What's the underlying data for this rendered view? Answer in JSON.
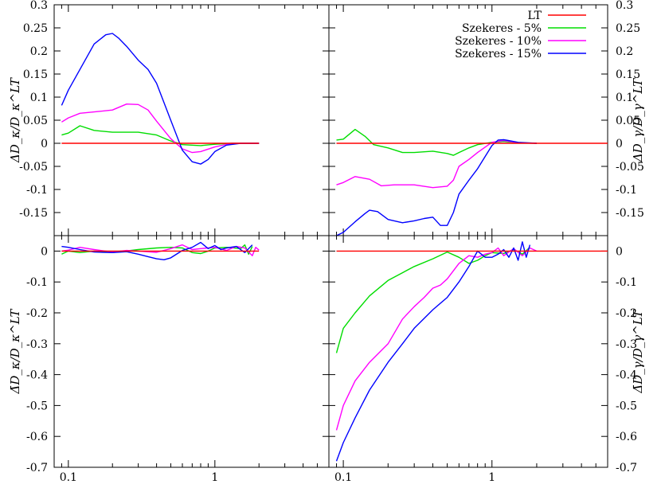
{
  "chart_data": {
    "type": "line",
    "xscale": "log",
    "x_tick_labels": [
      "0.1",
      "1"
    ],
    "x_tick_values": [
      0.1,
      1
    ],
    "xlim": [
      0.08,
      6
    ],
    "colors": {
      "LT": "#ff0000",
      "Szekeres - 5%": "#00dd00",
      "Szekeres - 10%": "#ff00ff",
      "Szekeres - 15%": "#0000ff"
    },
    "legend": {
      "placement": "top-right of upper-right panel",
      "entries": [
        "LT",
        "Szekeres - 5%",
        "Szekeres - 10%",
        "Szekeres - 15%"
      ]
    },
    "panels": [
      {
        "id": "top-left",
        "ylabel": "ΔD_κ/D_κ^LT",
        "ylim": [
          -0.2,
          0.3
        ],
        "yticks": [
          -0.15,
          -0.1,
          -0.05,
          0,
          0.05,
          0.1,
          0.15,
          0.2,
          0.25,
          0.3
        ],
        "ytick_labels": [
          "-0.15",
          "-0.1",
          "-0.05",
          "0",
          "0.05",
          "0.1",
          "0.15",
          "0.2",
          "0.25",
          "0.3"
        ],
        "ytick_side": "left",
        "series": [
          {
            "name": "LT",
            "x": [
              0.09,
              2.0
            ],
            "y": [
              0,
              0
            ]
          },
          {
            "name": "Szekeres - 5%",
            "x": [
              0.09,
              0.1,
              0.12,
              0.15,
              0.2,
              0.3,
              0.4,
              0.5,
              0.6,
              0.8,
              1.0,
              1.3,
              2.0
            ],
            "y": [
              0.018,
              0.022,
              0.038,
              0.028,
              0.024,
              0.024,
              0.018,
              0.005,
              -0.003,
              -0.005,
              -0.002,
              0,
              0
            ]
          },
          {
            "name": "Szekeres - 10%",
            "x": [
              0.09,
              0.1,
              0.12,
              0.15,
              0.2,
              0.25,
              0.3,
              0.35,
              0.4,
              0.5,
              0.6,
              0.7,
              0.8,
              1.0,
              1.3,
              2.0
            ],
            "y": [
              0.046,
              0.055,
              0.065,
              0.068,
              0.072,
              0.085,
              0.084,
              0.072,
              0.048,
              0.01,
              -0.012,
              -0.02,
              -0.018,
              -0.008,
              0,
              0
            ]
          },
          {
            "name": "Szekeres - 15%",
            "x": [
              0.09,
              0.1,
              0.12,
              0.15,
              0.18,
              0.2,
              0.22,
              0.25,
              0.3,
              0.35,
              0.4,
              0.5,
              0.6,
              0.7,
              0.8,
              0.9,
              1.0,
              1.2,
              1.5,
              2.0
            ],
            "y": [
              0.082,
              0.115,
              0.16,
              0.215,
              0.235,
              0.238,
              0.228,
              0.21,
              0.18,
              0.16,
              0.13,
              0.05,
              -0.015,
              -0.04,
              -0.045,
              -0.035,
              -0.018,
              -0.004,
              0,
              0
            ]
          }
        ]
      },
      {
        "id": "top-right",
        "ylabel": "ΔD_γ/D_γ^LT",
        "ylim": [
          -0.2,
          0.3
        ],
        "yticks": [
          -0.15,
          -0.1,
          -0.05,
          0,
          0.05,
          0.1,
          0.15,
          0.2,
          0.25,
          0.3
        ],
        "ytick_labels": [
          "-0.15",
          "-0.1",
          "-0.05",
          "0",
          "0.05",
          "0.1",
          "0.15",
          "0.2",
          "0.25",
          "0.3"
        ],
        "ytick_side": "right",
        "series": [
          {
            "name": "LT",
            "x": [
              0.09,
              6
            ],
            "y": [
              0,
              0
            ]
          },
          {
            "name": "Szekeres - 5%",
            "x": [
              0.09,
              0.1,
              0.11,
              0.12,
              0.14,
              0.16,
              0.2,
              0.25,
              0.3,
              0.4,
              0.5,
              0.55,
              0.6,
              0.7,
              0.8,
              1.0,
              1.2,
              1.5,
              2.0
            ],
            "y": [
              0.007,
              0.009,
              0.02,
              0.03,
              0.015,
              -0.003,
              -0.01,
              -0.02,
              -0.02,
              -0.017,
              -0.022,
              -0.026,
              -0.02,
              -0.01,
              -0.003,
              0.002,
              0.004,
              0.001,
              0
            ]
          },
          {
            "name": "Szekeres - 10%",
            "x": [
              0.09,
              0.1,
              0.12,
              0.15,
              0.18,
              0.22,
              0.3,
              0.4,
              0.5,
              0.55,
              0.6,
              0.7,
              0.8,
              1.0,
              1.2,
              1.5,
              2.0
            ],
            "y": [
              -0.09,
              -0.085,
              -0.072,
              -0.078,
              -0.092,
              -0.09,
              -0.09,
              -0.096,
              -0.093,
              -0.08,
              -0.05,
              -0.035,
              -0.02,
              0.002,
              0.006,
              0.001,
              0
            ]
          },
          {
            "name": "Szekeres - 15%",
            "x": [
              0.09,
              0.1,
              0.12,
              0.14,
              0.15,
              0.17,
              0.2,
              0.25,
              0.3,
              0.35,
              0.4,
              0.45,
              0.5,
              0.55,
              0.6,
              0.7,
              0.8,
              1.0,
              1.1,
              1.2,
              1.5,
              2.0
            ],
            "y": [
              -0.2,
              -0.193,
              -0.17,
              -0.152,
              -0.145,
              -0.148,
              -0.165,
              -0.172,
              -0.168,
              -0.163,
              -0.16,
              -0.178,
              -0.178,
              -0.15,
              -0.11,
              -0.08,
              -0.055,
              -0.005,
              0.007,
              0.008,
              0.002,
              0
            ]
          }
        ]
      },
      {
        "id": "bottom-left",
        "ylabel": "Δ̄D_κ/D_κ^LT",
        "ylim": [
          -0.7,
          0.05
        ],
        "yticks": [
          -0.7,
          -0.6,
          -0.5,
          -0.4,
          -0.3,
          -0.2,
          -0.1,
          0
        ],
        "ytick_labels": [
          "-0.7",
          "-0.6",
          "-0.5",
          "-0.4",
          "-0.3",
          "-0.2",
          "-0.1",
          "0"
        ],
        "ytick_side": "left",
        "series": [
          {
            "name": "LT",
            "x": [
              0.09,
              2.0
            ],
            "y": [
              0,
              0
            ]
          },
          {
            "name": "Szekeres - 5%",
            "x": [
              0.09,
              0.1,
              0.12,
              0.15,
              0.2,
              0.3,
              0.4,
              0.5,
              0.6,
              0.7,
              0.8,
              0.9,
              1.0,
              1.2,
              1.5,
              1.6,
              1.7,
              1.8
            ],
            "y": [
              -0.01,
              0,
              -0.005,
              0,
              -0.005,
              0.005,
              0.01,
              0.012,
              0.01,
              -0.005,
              -0.008,
              0,
              0.01,
              0.012,
              0.008,
              0.02,
              -0.01,
              0.015
            ]
          },
          {
            "name": "Szekeres - 10%",
            "x": [
              0.09,
              0.1,
              0.12,
              0.15,
              0.2,
              0.25,
              0.3,
              0.4,
              0.5,
              0.6,
              0.7,
              0.8,
              1.0,
              1.2,
              1.4,
              1.6,
              1.8,
              1.9,
              2.0
            ],
            "y": [
              0,
              0.003,
              0.012,
              0.005,
              -0.003,
              0.002,
              0,
              -0.004,
              0.008,
              0.02,
              0.005,
              0.008,
              0.012,
              0.002,
              0.015,
              0.01,
              -0.015,
              0.012,
              0.003
            ]
          },
          {
            "name": "Szekeres - 15%",
            "x": [
              0.09,
              0.1,
              0.12,
              0.15,
              0.2,
              0.25,
              0.3,
              0.35,
              0.4,
              0.45,
              0.5,
              0.6,
              0.7,
              0.8,
              0.9,
              1.0,
              1.1,
              1.2,
              1.4,
              1.6,
              1.8
            ],
            "y": [
              0.015,
              0.012,
              0.005,
              -0.003,
              -0.005,
              -0.002,
              -0.01,
              -0.018,
              -0.025,
              -0.028,
              -0.022,
              0.002,
              0.012,
              0.028,
              0.008,
              0.018,
              0.005,
              0.01,
              0.015,
              -0.005,
              0.02
            ]
          }
        ]
      },
      {
        "id": "bottom-right",
        "ylabel": "Δ̄D_γ/D_γ^LT",
        "ylim": [
          -0.7,
          0.05
        ],
        "yticks": [
          -0.7,
          -0.6,
          -0.5,
          -0.4,
          -0.3,
          -0.2,
          -0.1,
          0
        ],
        "ytick_labels": [
          "-0.7",
          "-0.6",
          "-0.5",
          "-0.4",
          "-0.3",
          "-0.2",
          "-0.1",
          "0"
        ],
        "ytick_side": "right",
        "series": [
          {
            "name": "LT",
            "x": [
              0.09,
              6
            ],
            "y": [
              0,
              0
            ]
          },
          {
            "name": "Szekeres - 5%",
            "x": [
              0.09,
              0.1,
              0.12,
              0.15,
              0.2,
              0.25,
              0.3,
              0.4,
              0.5,
              0.6,
              0.7,
              0.8,
              0.9,
              1.0,
              1.2,
              1.4,
              1.6,
              1.8
            ],
            "y": [
              -0.33,
              -0.25,
              -0.2,
              -0.145,
              -0.095,
              -0.07,
              -0.05,
              -0.025,
              -0.003,
              -0.02,
              -0.04,
              -0.03,
              -0.015,
              -0.005,
              -0.008,
              0.005,
              -0.01,
              0.012
            ]
          },
          {
            "name": "Szekeres - 10%",
            "x": [
              0.09,
              0.1,
              0.12,
              0.15,
              0.2,
              0.25,
              0.3,
              0.35,
              0.4,
              0.45,
              0.5,
              0.6,
              0.7,
              0.8,
              0.9,
              1.0,
              1.1,
              1.2,
              1.4,
              1.6,
              1.8,
              2.0
            ],
            "y": [
              -0.58,
              -0.5,
              -0.42,
              -0.36,
              -0.3,
              -0.22,
              -0.18,
              -0.15,
              -0.12,
              -0.11,
              -0.09,
              -0.04,
              -0.015,
              -0.02,
              -0.01,
              -0.005,
              0.01,
              -0.015,
              0.008,
              -0.015,
              0.01,
              0
            ]
          },
          {
            "name": "Szekeres - 15%",
            "x": [
              0.09,
              0.1,
              0.12,
              0.15,
              0.2,
              0.25,
              0.3,
              0.4,
              0.5,
              0.6,
              0.7,
              0.8,
              0.9,
              1.0,
              1.1,
              1.2,
              1.3,
              1.4,
              1.5,
              1.6,
              1.7,
              1.8
            ],
            "y": [
              -0.68,
              -0.62,
              -0.54,
              -0.45,
              -0.36,
              -0.3,
              -0.25,
              -0.19,
              -0.15,
              -0.1,
              -0.05,
              0,
              -0.02,
              -0.02,
              -0.01,
              0.005,
              -0.02,
              0.01,
              -0.03,
              0.03,
              -0.02,
              0.02
            ]
          }
        ]
      }
    ]
  }
}
